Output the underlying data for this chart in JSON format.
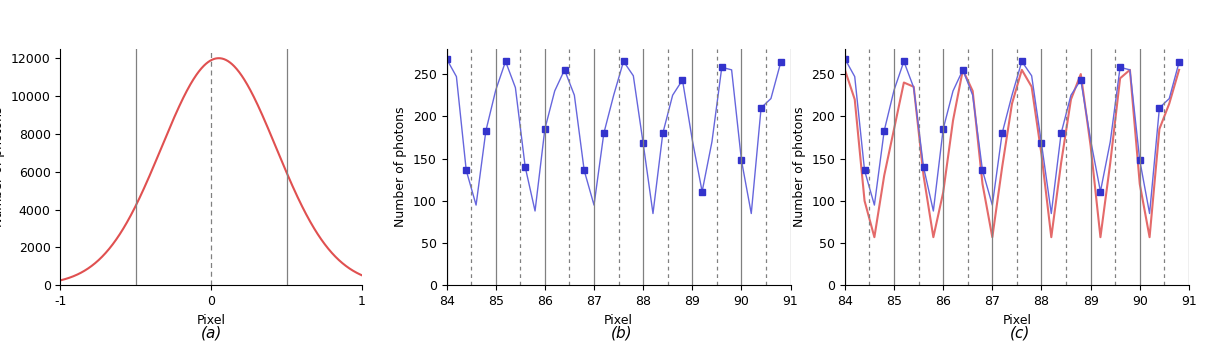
{
  "subplot_a": {
    "xlabel": "Pixel",
    "ylabel": "Number of photons",
    "xlim": [
      -1,
      1
    ],
    "ylim": [
      0,
      12500
    ],
    "yticks": [
      0,
      2000,
      4000,
      6000,
      8000,
      10000,
      12000
    ],
    "vlines_solid": [
      -0.5,
      0.5
    ],
    "vline_dotted": 0.0,
    "gaussian_mean": 0.05,
    "gaussian_std": 0.38,
    "gaussian_amplitude": 12000,
    "curve_color": "#e05050",
    "label": "(a)"
  },
  "subplot_bc": {
    "xlabel": "Pixel",
    "ylabel": "Number of photons",
    "xlim": [
      84,
      91
    ],
    "ylim": [
      0,
      280
    ],
    "yticks": [
      0,
      50,
      100,
      150,
      200,
      250
    ],
    "solid_vlines": [
      84,
      85,
      86,
      87,
      88,
      89,
      90,
      91
    ],
    "dotted_vlines": [
      84.5,
      85.5,
      86.5,
      87.5,
      88.5,
      89.5,
      90.5
    ],
    "x_data": [
      84.0,
      84.2,
      84.4,
      84.6,
      84.8,
      85.0,
      85.2,
      85.4,
      85.6,
      85.8,
      86.0,
      86.2,
      86.4,
      86.6,
      86.8,
      87.0,
      87.2,
      87.4,
      87.6,
      87.8,
      88.0,
      88.2,
      88.4,
      88.6,
      88.8,
      89.0,
      89.2,
      89.4,
      89.6,
      89.8,
      90.0,
      90.2,
      90.4,
      90.6,
      90.8
    ],
    "y_blue": [
      268,
      247,
      136,
      95,
      183,
      231,
      265,
      234,
      140,
      88,
      185,
      230,
      255,
      225,
      136,
      95,
      180,
      225,
      265,
      248,
      168,
      85,
      180,
      225,
      243,
      172,
      111,
      170,
      258,
      255,
      148,
      85,
      210,
      221,
      264
    ],
    "y_red": [
      255,
      220,
      100,
      57,
      130,
      185,
      240,
      235,
      130,
      57,
      110,
      195,
      255,
      230,
      120,
      57,
      140,
      215,
      255,
      235,
      155,
      57,
      145,
      220,
      250,
      165,
      57,
      145,
      245,
      255,
      120,
      57,
      185,
      215,
      255
    ],
    "blue_color": "#3333cc",
    "blue_line_color": "#6666dd",
    "red_color": "#e05050",
    "label_b": "(b)",
    "label_c": "(c)"
  },
  "fig_background": "#ffffff",
  "font_size_label": 9,
  "font_size_caption": 11
}
